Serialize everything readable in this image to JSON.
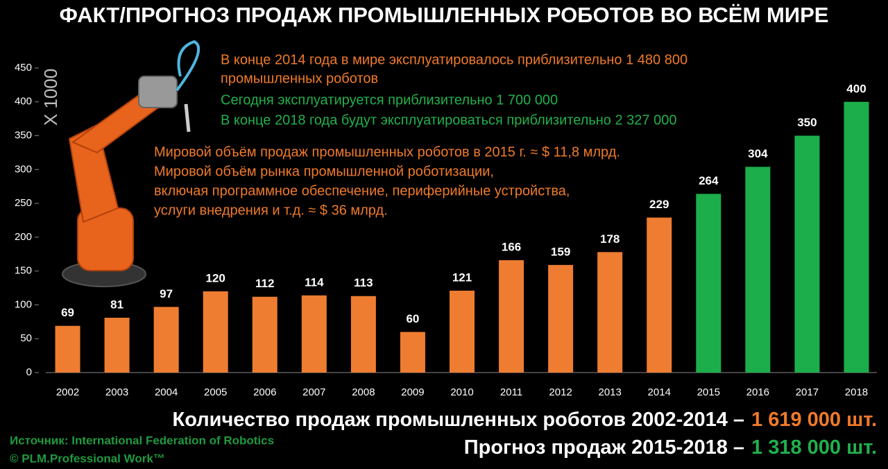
{
  "chart_data": {
    "type": "bar",
    "title": "ФАКТ/ПРОГНОЗ ПРОДАЖ ПРОМЫШЛЕННЫХ РОБОТОВ ВО ВСЁМ МИРЕ",
    "y_axis_label": "X 1000",
    "categories": [
      "2002",
      "2003",
      "2004",
      "2005",
      "2006",
      "2007",
      "2008",
      "2009",
      "2010",
      "2011",
      "2012",
      "2013",
      "2014",
      "2015",
      "2016",
      "2017",
      "2018"
    ],
    "values": [
      69,
      81,
      97,
      120,
      112,
      114,
      113,
      60,
      121,
      166,
      159,
      178,
      229,
      264,
      304,
      350,
      400
    ],
    "colors": [
      "#ee7d31",
      "#ee7d31",
      "#ee7d31",
      "#ee7d31",
      "#ee7d31",
      "#ee7d31",
      "#ee7d31",
      "#ee7d31",
      "#ee7d31",
      "#ee7d31",
      "#ee7d31",
      "#ee7d31",
      "#ee7d31",
      "#1cae4a",
      "#1cae4a",
      "#1cae4a",
      "#1cae4a"
    ],
    "ylim": [
      0,
      450
    ],
    "yticks": [
      0,
      50,
      100,
      150,
      200,
      250,
      300,
      350,
      400,
      450
    ],
    "grid": false,
    "notes": [
      {
        "color": "#f07a2a",
        "lines": [
          "В конце 2014 года в мире эксплуатировалось приблизительно 1 480 800",
          "промышленных роботов"
        ]
      },
      {
        "color": "#22b04c",
        "lines": [
          "Сегодня эксплуатируется приблизительно 1 700 000",
          "В конце 2018 года будут эксплуатироваться приблизительно 2 327 000"
        ]
      },
      {
        "color": "#f07a2a",
        "lines": [
          "Мировой объём продаж промышленных роботов в 2015 г. ≈ $ 11,8 млрд.",
          "Мировой объём рынка промышленной роботизации,",
          "включая программное обеспечение, периферийные устройства,",
          "услуги внедрения и т.д. ≈ $ 36 млрд."
        ]
      }
    ],
    "totals": [
      {
        "label": "Количество продаж промышленных роботов 2002-2014 –",
        "value": "1 619 000 шт.",
        "color": "#f07a2a"
      },
      {
        "label": "Прогноз продаж 2015-2018 –",
        "value": "1 318 000 шт.",
        "color": "#22b04c"
      }
    ],
    "source": [
      "Источник: International Federation of Robotics",
      "© PLM.Professional Work™"
    ],
    "source_color": "#1f9a3f"
  }
}
